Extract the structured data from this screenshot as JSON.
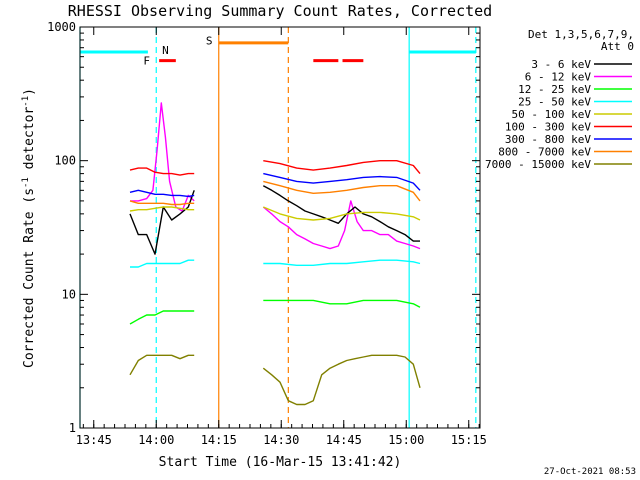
{
  "chart_data": {
    "type": "line",
    "title": "RHESSI Observing Summary Count Rates, Corrected",
    "xlabel": "Start Time (16-Mar-15 13:41:42)",
    "ylabel_main": "Corrected Count Rate (s",
    "ylabel_sup1": "-1",
    "ylabel_mid": " detector",
    "ylabel_sup2": "-1",
    "ylabel_end": ")",
    "y_scale": "log",
    "ylim": [
      1,
      1000
    ],
    "xlim_minutes": [
      0,
      96
    ],
    "x_ticks": [
      {
        "label": "13:45",
        "minute": 3.3
      },
      {
        "label": "14:00",
        "minute": 18.3
      },
      {
        "label": "14:15",
        "minute": 33.3
      },
      {
        "label": "14:30",
        "minute": 48.3
      },
      {
        "label": "14:45",
        "minute": 63.3
      },
      {
        "label": "15:00",
        "minute": 78.3
      },
      {
        "label": "15:15",
        "minute": 93.3
      }
    ],
    "y_ticks": [
      {
        "label": "1",
        "value": 1
      },
      {
        "label": "10",
        "value": 10
      },
      {
        "label": "100",
        "value": 100
      },
      {
        "label": "1000",
        "value": 1000
      }
    ],
    "legend_header": [
      "Det 1,3,5,6,7,9,",
      "Att 0"
    ],
    "legend_position": "right",
    "grid": false,
    "series": [
      {
        "name": "3 - 6 keV",
        "color": "#000000",
        "segments": [
          {
            "x": [
              12.0,
              14.0,
              16.0,
              18.0,
              20.0,
              22.0,
              24.0,
              26.0,
              27.4
            ],
            "y": [
              40,
              28,
              28,
              20,
              45,
              36,
              40,
              45,
              60
            ]
          },
          {
            "x": [
              44.0,
              46.0,
              48.0,
              50.0,
              52.0,
              54.0,
              56.0,
              58.0,
              60.0,
              62.0,
              64.0,
              66.0,
              68.0,
              70.0,
              72.0,
              74.0,
              76.0,
              78.0,
              80.0,
              81.6
            ],
            "y": [
              65,
              60,
              55,
              50,
              46,
              42,
              40,
              38,
              36,
              34,
              40,
              45,
              40,
              38,
              35,
              32,
              30,
              28,
              25,
              25
            ]
          }
        ]
      },
      {
        "name": "6 - 12 keV",
        "color": "#ff00ff",
        "segments": [
          {
            "x": [
              12.0,
              14.0,
              16.0,
              17.5,
              18.5,
              19.5,
              20.5,
              21.5,
              23.0,
              24.5,
              26.0,
              27.4
            ],
            "y": [
              50,
              50,
              52,
              60,
              120,
              270,
              150,
              70,
              45,
              42,
              55,
              50
            ]
          },
          {
            "x": [
              44.0,
              46.0,
              48.0,
              50.0,
              52.0,
              54.0,
              56.0,
              58.0,
              60.0,
              62.0,
              63.5,
              65.0,
              66.5,
              68.0,
              70.0,
              72.0,
              74.0,
              76.0,
              78.0,
              80.0,
              81.6
            ],
            "y": [
              45,
              40,
              35,
              32,
              28,
              26,
              24,
              23,
              22,
              23,
              30,
              50,
              35,
              30,
              30,
              28,
              28,
              25,
              24,
              23,
              22
            ]
          }
        ]
      },
      {
        "name": "12 - 25 keV",
        "color": "#00ff00",
        "segments": [
          {
            "x": [
              12.0,
              14.0,
              16.0,
              18.0,
              20.0,
              22.0,
              24.0,
              26.0,
              27.4
            ],
            "y": [
              6,
              6.5,
              7,
              7,
              7.5,
              7.5,
              7.5,
              7.5,
              7.5
            ]
          },
          {
            "x": [
              44.0,
              48.0,
              52.0,
              56.0,
              60.0,
              64.0,
              68.0,
              72.0,
              76.0,
              80.0,
              81.6
            ],
            "y": [
              9,
              9,
              9,
              9,
              8.5,
              8.5,
              9,
              9,
              9,
              8.5,
              8
            ]
          }
        ]
      },
      {
        "name": "25 - 50 keV",
        "color": "#00ffff",
        "segments": [
          {
            "x": [
              12.0,
              14.0,
              16.0,
              18.0,
              20.0,
              22.0,
              24.0,
              26.0,
              27.4
            ],
            "y": [
              16,
              16,
              17,
              17,
              17,
              17,
              17,
              18,
              18
            ]
          },
          {
            "x": [
              44.0,
              48.0,
              52.0,
              56.0,
              60.0,
              64.0,
              68.0,
              72.0,
              76.0,
              80.0,
              81.6
            ],
            "y": [
              17,
              17,
              16.5,
              16.5,
              17,
              17,
              17.5,
              18,
              18,
              17.5,
              17
            ]
          }
        ]
      },
      {
        "name": "50 - 100 keV",
        "color": "#cccc00",
        "segments": [
          {
            "x": [
              12.0,
              14.0,
              16.0,
              18.0,
              20.0,
              22.0,
              24.0,
              26.0,
              27.4
            ],
            "y": [
              42,
              43,
              43,
              44,
              45,
              45,
              44,
              43,
              43
            ]
          },
          {
            "x": [
              44.0,
              48.0,
              52.0,
              56.0,
              60.0,
              64.0,
              68.0,
              72.0,
              76.0,
              80.0,
              81.6
            ],
            "y": [
              45,
              40,
              37,
              36,
              37,
              40,
              41,
              41,
              40,
              38,
              36
            ]
          }
        ]
      },
      {
        "name": "100 - 300 keV",
        "color": "#ff0000",
        "segments": [
          {
            "x": [
              12.0,
              14.0,
              16.0,
              18.0,
              20.0,
              22.0,
              24.0,
              26.0,
              27.4
            ],
            "y": [
              85,
              88,
              88,
              82,
              80,
              80,
              78,
              80,
              80
            ]
          },
          {
            "x": [
              44.0,
              48.0,
              52.0,
              56.0,
              60.0,
              64.0,
              68.0,
              72.0,
              76.0,
              80.0,
              81.6
            ],
            "y": [
              100,
              95,
              88,
              85,
              88,
              92,
              97,
              100,
              100,
              92,
              80
            ]
          }
        ]
      },
      {
        "name": "300 - 800 keV",
        "color": "#0000ff",
        "segments": [
          {
            "x": [
              12.0,
              14.0,
              16.0,
              18.0,
              20.0,
              22.0,
              24.0,
              26.0,
              27.4
            ],
            "y": [
              58,
              60,
              58,
              56,
              56,
              55,
              55,
              54,
              55
            ]
          },
          {
            "x": [
              44.0,
              48.0,
              52.0,
              56.0,
              60.0,
              64.0,
              68.0,
              72.0,
              76.0,
              80.0,
              81.6
            ],
            "y": [
              80,
              75,
              70,
              68,
              70,
              72,
              75,
              76,
              75,
              68,
              60
            ]
          }
        ]
      },
      {
        "name": "800 - 7000 keV",
        "color": "#ff8000",
        "segments": [
          {
            "x": [
              12.0,
              14.0,
              16.0,
              18.0,
              20.0,
              22.0,
              24.0,
              26.0,
              27.4
            ],
            "y": [
              50,
              48,
              48,
              48,
              48,
              47,
              47,
              48,
              48
            ]
          },
          {
            "x": [
              44.0,
              48.0,
              52.0,
              56.0,
              60.0,
              64.0,
              68.0,
              72.0,
              76.0,
              80.0,
              81.6
            ],
            "y": [
              70,
              65,
              60,
              57,
              58,
              60,
              63,
              65,
              65,
              58,
              50
            ]
          }
        ]
      },
      {
        "name": "7000 - 15000 keV",
        "color": "#808000",
        "segments": [
          {
            "x": [
              12.0,
              14.0,
              16.0,
              18.0,
              20.0,
              22.0,
              24.0,
              26.0,
              27.4
            ],
            "y": [
              2.5,
              3.2,
              3.5,
              3.5,
              3.5,
              3.5,
              3.3,
              3.5,
              3.5
            ]
          },
          {
            "x": [
              44.0,
              46.0,
              48.0,
              50.0,
              52.0,
              54.0,
              56.0,
              58.0,
              60.0,
              62.0,
              64.0,
              66.0,
              68.0,
              70.0,
              72.0,
              74.0,
              76.0,
              78.0,
              80.0,
              81.6
            ],
            "y": [
              2.8,
              2.5,
              2.2,
              1.6,
              1.5,
              1.5,
              1.6,
              2.5,
              2.8,
              3.0,
              3.2,
              3.3,
              3.4,
              3.5,
              3.5,
              3.5,
              3.5,
              3.4,
              3.0,
              2.0
            ]
          }
        ]
      }
    ],
    "flags": [
      {
        "label": "",
        "color": "#00ffff",
        "y": 650,
        "x_start": 0,
        "x_end": 16.3,
        "style": "solid"
      },
      {
        "label": "",
        "color": "#00ffff",
        "y": 650,
        "x_start": 79.0,
        "x_end": 95.0,
        "style": "solid"
      },
      {
        "label": "",
        "color": "#ff8000",
        "y": 760,
        "x_start": 33.3,
        "x_end": 50.0,
        "style": "solid"
      },
      {
        "label": "",
        "color": "#ff0000",
        "y": 560,
        "x_start": 19.0,
        "x_end": 23.0,
        "style": "solid"
      },
      {
        "label": "",
        "color": "#ff0000",
        "y": 560,
        "x_start": 56.0,
        "x_end": 62.0,
        "style": "solid"
      },
      {
        "label": "",
        "color": "#ff0000",
        "y": 560,
        "x_start": 63.0,
        "x_end": 68.0,
        "style": "solid"
      }
    ],
    "flag_letters": [
      {
        "label": "F",
        "color": "#ff0000",
        "x": 16.0,
        "y": 560
      },
      {
        "label": "N",
        "color": "#00ffff",
        "x": 20.5,
        "y": 670
      },
      {
        "label": "S",
        "color": "#ff8000",
        "x": 31.0,
        "y": 790
      }
    ],
    "vlines": [
      {
        "x": 0.0,
        "color": "#00ffff",
        "style": "solid"
      },
      {
        "x": 18.3,
        "color": "#00ffff",
        "style": "dashed"
      },
      {
        "x": 33.3,
        "color": "#ff8000",
        "style": "solid"
      },
      {
        "x": 50.0,
        "color": "#ff8000",
        "style": "dashed"
      },
      {
        "x": 79.0,
        "color": "#00ffff",
        "style": "solid"
      },
      {
        "x": 95.0,
        "color": "#00ffff",
        "style": "dashed"
      }
    ],
    "timestamp": "27-Oct-2021 08:53"
  }
}
